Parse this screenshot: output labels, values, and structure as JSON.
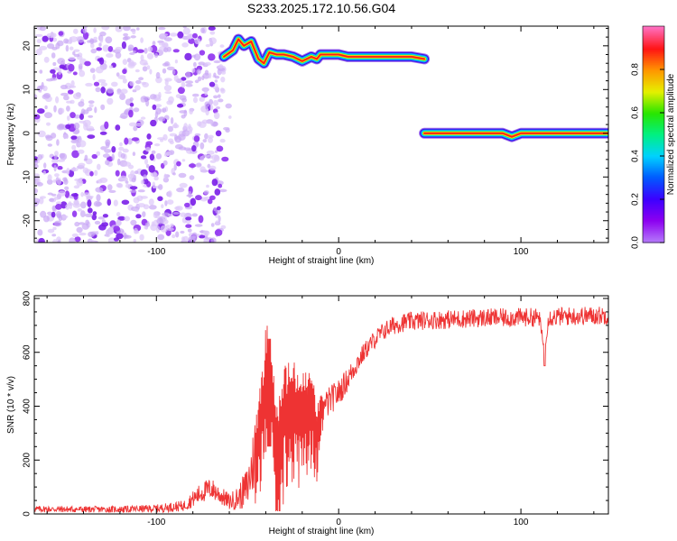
{
  "title": "S233.2025.172.10.56.G04",
  "chart_data": [
    {
      "type": "heatmap",
      "xlabel": "Height of straight line (km)",
      "ylabel": "Frequency (Hz)",
      "xlim": [
        -167,
        148
      ],
      "ylim": [
        -25,
        24.5
      ],
      "x_ticks": [
        -100,
        0,
        100
      ],
      "y_ticks": [
        -20,
        -10,
        0,
        10,
        20
      ],
      "colorbar": {
        "label": "Normalized spectral amplitude",
        "range": [
          0,
          1
        ],
        "ticks": [
          0.0,
          0.2,
          0.4,
          0.6,
          0.8
        ]
      },
      "noise_region": {
        "x_range": [
          -167,
          -63
        ],
        "y_range": [
          -25,
          24.5
        ],
        "amplitude": 0.2
      },
      "ridges": [
        {
          "name": "ridge-upper",
          "amplitude": 0.95,
          "points": [
            [
              -63,
              17.5
            ],
            [
              -58,
              19
            ],
            [
              -55,
              21.5
            ],
            [
              -52,
              20
            ],
            [
              -48,
              21
            ],
            [
              -44,
              17
            ],
            [
              -41,
              16
            ],
            [
              -38,
              18.5
            ],
            [
              -34,
              18
            ],
            [
              -30,
              18
            ],
            [
              -25,
              17.5
            ],
            [
              -20,
              16.5
            ],
            [
              -15,
              17.5
            ],
            [
              -12,
              17
            ],
            [
              -10,
              18
            ],
            [
              -5,
              18
            ],
            [
              0,
              18
            ],
            [
              5,
              17.5
            ],
            [
              10,
              17.5
            ],
            [
              20,
              17.5
            ],
            [
              30,
              17.5
            ],
            [
              40,
              17.5
            ],
            [
              47,
              17
            ]
          ]
        },
        {
          "name": "ridge-lower",
          "amplitude": 0.95,
          "points": [
            [
              47,
              0
            ],
            [
              60,
              0
            ],
            [
              80,
              0
            ],
            [
              90,
              0
            ],
            [
              95,
              -0.8
            ],
            [
              100,
              0
            ],
            [
              120,
              0
            ],
            [
              148,
              0
            ]
          ]
        }
      ]
    },
    {
      "type": "line",
      "xlabel": "Height of straight line (km)",
      "ylabel": "SNR (10 * v/v)",
      "xlim": [
        -167,
        148
      ],
      "ylim": [
        0,
        810
      ],
      "x_ticks": [
        -100,
        0,
        100
      ],
      "y_ticks": [
        0,
        200,
        400,
        600,
        800
      ],
      "color": "#ee3333",
      "series": [
        {
          "x": [
            -167,
            -140,
            -120,
            -100,
            -85,
            -80,
            -75,
            -70,
            -65,
            -60,
            -55,
            -50,
            -45,
            -40,
            -38,
            -35,
            -32,
            -30,
            -25,
            -20,
            -15,
            -12,
            -10,
            -5,
            0,
            5,
            10,
            15,
            20,
            25,
            30,
            35,
            40,
            50,
            60,
            70,
            80,
            90,
            100,
            110,
            113,
            115,
            120,
            130,
            140,
            148
          ],
          "y": [
            18,
            17,
            17,
            20,
            30,
            55,
            80,
            95,
            70,
            45,
            60,
            100,
            250,
            480,
            650,
            300,
            250,
            370,
            390,
            360,
            400,
            300,
            380,
            420,
            450,
            500,
            560,
            610,
            650,
            680,
            700,
            710,
            715,
            720,
            722,
            725,
            728,
            728,
            730,
            730,
            600,
            730,
            732,
            735,
            736,
            738
          ],
          "amp": [
            12,
            12,
            12,
            15,
            20,
            30,
            40,
            40,
            35,
            30,
            45,
            80,
            150,
            220,
            60,
            220,
            200,
            200,
            180,
            170,
            150,
            120,
            60,
            55,
            50,
            45,
            40,
            35,
            35,
            35,
            35,
            35,
            35,
            35,
            35,
            35,
            35,
            35,
            35,
            35,
            10,
            35,
            35,
            35,
            35,
            35
          ]
        }
      ]
    }
  ]
}
